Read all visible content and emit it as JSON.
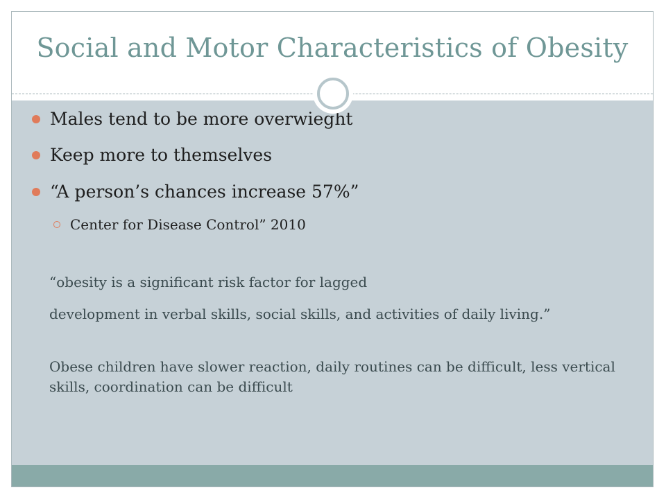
{
  "slide": {
    "title": "Social and Motor Characteristics of Obesity",
    "bullets": [
      "Males tend to be more overwieght",
      "Keep more to themselves",
      "“A person’s chances increase 57%”"
    ],
    "sub_bullet": "Center for Disease Control” 2010",
    "paragraphs": [
      "“obesity is a significant risk factor for lagged",
      "development in verbal skills, social skills, and activities of daily living.”",
      "Obese children have slower reaction, daily routines can be difficult, less vertical skills, coordination can be difficult"
    ]
  },
  "colors": {
    "title": "#6f9796",
    "content_background": "#c6d1d7",
    "footer_bar": "#89aaa8",
    "bullet_accent": "#e07b5a"
  },
  "icons": {
    "bullet": "filled-circle",
    "sub_bullet": "hollow-circle",
    "title_ornament": "ring"
  }
}
